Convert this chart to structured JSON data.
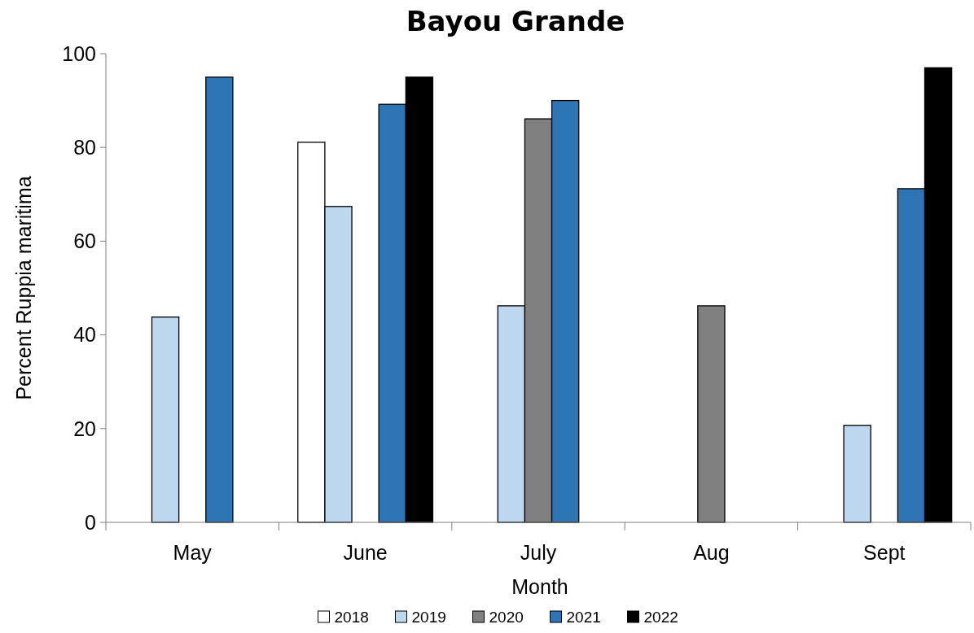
{
  "chart_data": {
    "type": "bar",
    "title": "Bayou Grande",
    "xlabel": "Month",
    "ylabel": "Percent Ruppia maritima",
    "categories": [
      "May",
      "June",
      "July",
      "Aug",
      "Sept"
    ],
    "series": [
      {
        "name": "2018",
        "color": "#ffffff",
        "values": [
          null,
          81.1,
          null,
          null,
          null
        ]
      },
      {
        "name": "2019",
        "color": "#bdd7ee",
        "values": [
          43.8,
          67.4,
          46.2,
          null,
          20.7
        ]
      },
      {
        "name": "2020",
        "color": "#808080",
        "values": [
          null,
          null,
          86.1,
          46.2,
          null
        ]
      },
      {
        "name": "2021",
        "color": "#2e75b6",
        "values": [
          95,
          89.2,
          90,
          null,
          71.2
        ]
      },
      {
        "name": "2022",
        "color": "#000000",
        "values": [
          null,
          95,
          null,
          null,
          97
        ]
      }
    ],
    "ylim": [
      0,
      100
    ],
    "yticks": [
      0,
      20,
      40,
      60,
      80,
      100
    ],
    "legend": "bottom"
  }
}
